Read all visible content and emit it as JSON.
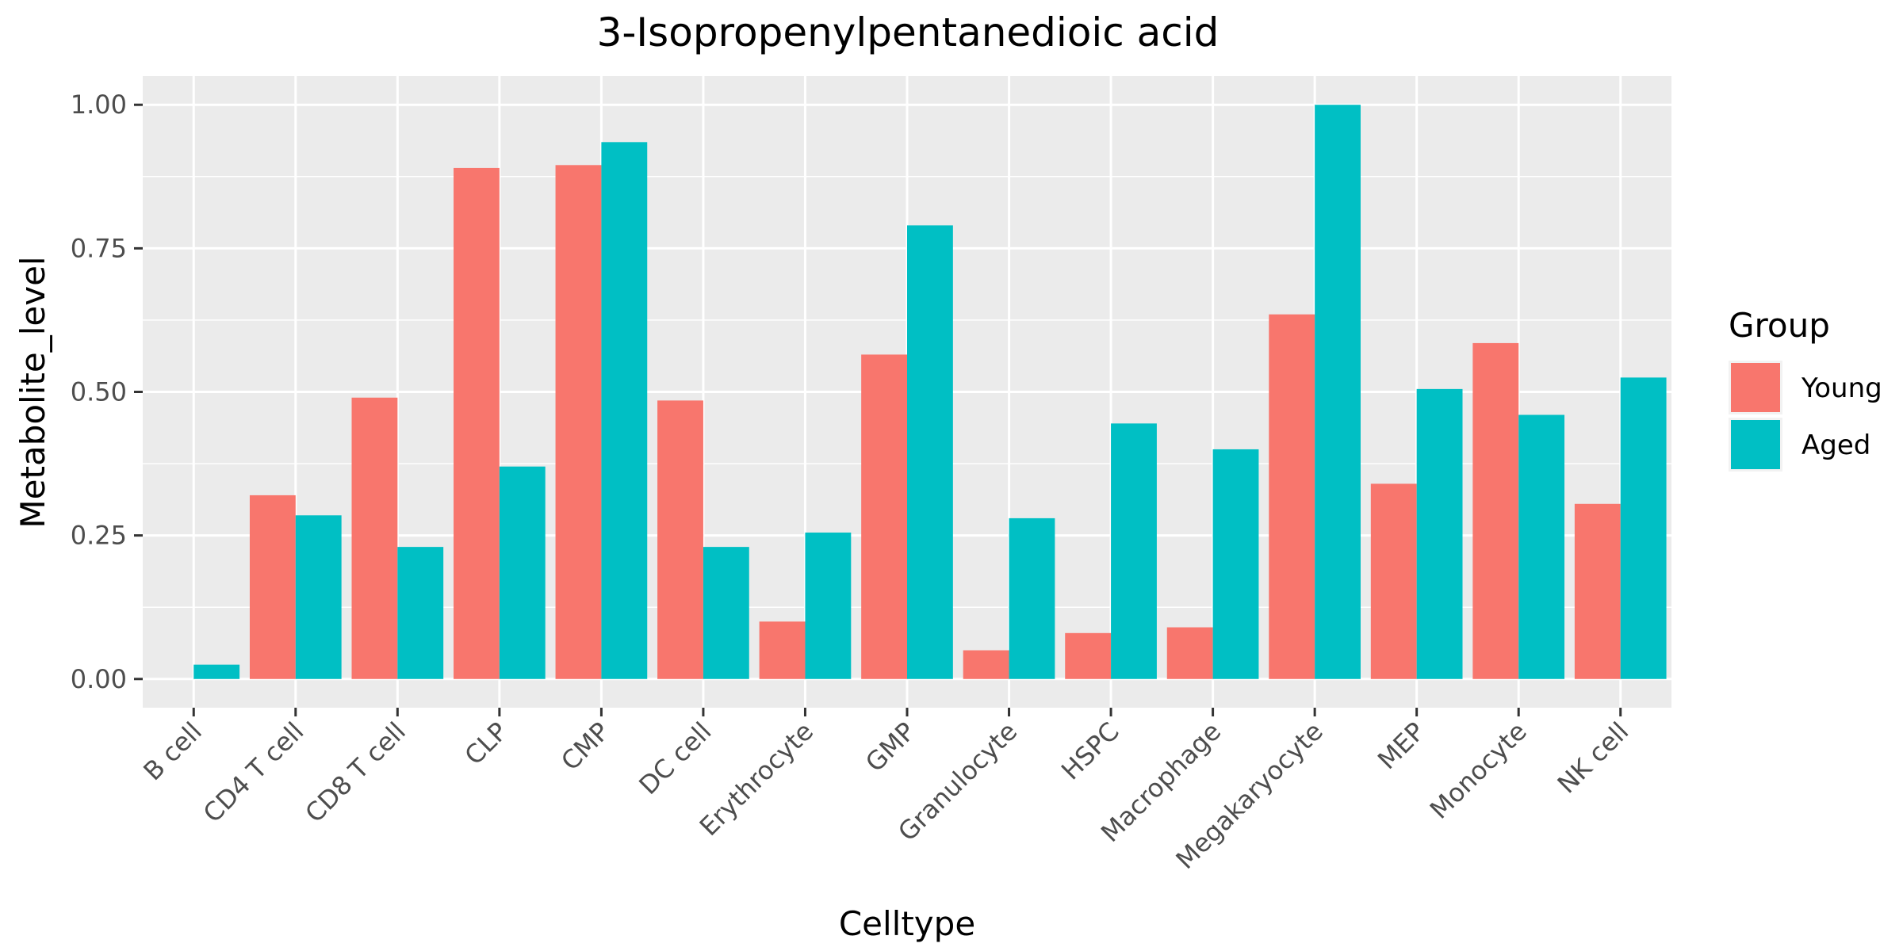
{
  "chart_data": {
    "type": "bar",
    "title": "3-Isopropenylpentanedioic acid",
    "xlabel": "Celltype",
    "ylabel": "Metabolite_level",
    "ylim": [
      -0.05,
      1.05
    ],
    "yticks": [
      0.0,
      0.25,
      0.5,
      0.75,
      1.0
    ],
    "ytick_labels": [
      "0.00",
      "0.25",
      "0.50",
      "0.75",
      "1.00"
    ],
    "grid": true,
    "legend": {
      "title": "Group",
      "position": "right"
    },
    "categories": [
      "B cell",
      "CD4 T cell",
      "CD8 T cell",
      "CLP",
      "CMP",
      "DC cell",
      "Erythrocyte",
      "GMP",
      "Granulocyte",
      "HSPC",
      "Macrophage",
      "Megakaryocyte",
      "MEP",
      "Monocyte",
      "NK cell"
    ],
    "series": [
      {
        "name": "Young",
        "color": "#F8766D",
        "values": [
          0.0,
          0.32,
          0.49,
          0.89,
          0.895,
          0.485,
          0.1,
          0.565,
          0.05,
          0.08,
          0.09,
          0.635,
          0.34,
          0.585,
          0.305
        ]
      },
      {
        "name": "Aged",
        "color": "#00BFC4",
        "values": [
          0.025,
          0.285,
          0.23,
          0.37,
          0.935,
          0.23,
          0.255,
          0.79,
          0.28,
          0.445,
          0.4,
          1.0,
          0.505,
          0.46,
          0.525
        ]
      }
    ]
  }
}
